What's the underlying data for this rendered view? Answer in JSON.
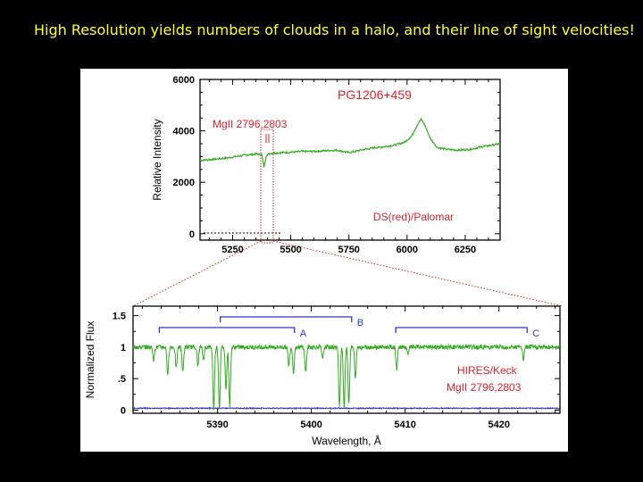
{
  "slide": {
    "title": "High Resolution yields numbers of clouds in a halo, and their line of sight velocities!"
  },
  "chart_data": [
    {
      "type": "line",
      "title": "PG1206+459",
      "ylabel": "Relative Intensity",
      "xlabel": "",
      "xlim": [
        5110,
        6400
      ],
      "ylim": [
        -250,
        6000
      ],
      "x_ticks": [
        5250,
        5500,
        5750,
        6000,
        6250
      ],
      "y_ticks": [
        0,
        2000,
        4000,
        6000
      ],
      "annotations": [
        "MgII 2796,2803",
        "DS(red)/Palomar"
      ],
      "series": [
        {
          "x": [
            5110,
            5150,
            5200,
            5250,
            5300,
            5350,
            5375,
            5385,
            5395,
            5410,
            5450,
            5500,
            5550,
            5600,
            5650,
            5700,
            5750,
            5800,
            5850,
            5900,
            5950,
            5990,
            6020,
            6045,
            6060,
            6075,
            6100,
            6130,
            6170,
            6220,
            6270,
            6320,
            6370,
            6400
          ],
          "y": [
            2850,
            2880,
            2920,
            2980,
            3050,
            3100,
            3080,
            2600,
            3050,
            3120,
            3150,
            3170,
            3200,
            3200,
            3230,
            3250,
            3150,
            3250,
            3330,
            3380,
            3450,
            3560,
            3800,
            4250,
            4450,
            4250,
            3700,
            3350,
            3280,
            3250,
            3280,
            3380,
            3450,
            3500
          ]
        }
      ]
    },
    {
      "type": "line",
      "title": "",
      "xlabel": "Wavelength, Å",
      "ylabel": "Normalized Flux",
      "xlim": [
        5381,
        5426.5
      ],
      "ylim": [
        -0.05,
        1.65
      ],
      "x_ticks": [
        5390,
        5400,
        5410,
        5420
      ],
      "y_ticks": [
        0,
        0.5,
        1,
        1.5
      ],
      "y_tick_labels": [
        "0",
        ".5",
        "1",
        "1.5"
      ],
      "annotations": [
        "HIRES/Keck",
        "MgII 2796,2803"
      ],
      "systems": [
        {
          "label": "A",
          "x_start": 5383.8,
          "x_end": 5398.2,
          "y": 1.31
        },
        {
          "label": "B",
          "x_start": 5390.3,
          "x_end": 5404.3,
          "y": 1.48
        },
        {
          "label": "C",
          "x_start": 5409.0,
          "x_end": 5423.0,
          "y": 1.31
        }
      ],
      "absorption_lines": [
        {
          "x": 5383.2,
          "depth": 0.2
        },
        {
          "x": 5384.7,
          "depth": 0.45
        },
        {
          "x": 5385.6,
          "depth": 0.35
        },
        {
          "x": 5386.3,
          "depth": 0.4
        },
        {
          "x": 5387.9,
          "depth": 0.3
        },
        {
          "x": 5388.5,
          "depth": 0.2
        },
        {
          "x": 5389.6,
          "depth": 0.98
        },
        {
          "x": 5390.2,
          "depth": 0.97
        },
        {
          "x": 5390.9,
          "depth": 0.65
        },
        {
          "x": 5391.3,
          "depth": 0.95
        },
        {
          "x": 5397.6,
          "depth": 0.3
        },
        {
          "x": 5398.1,
          "depth": 0.4
        },
        {
          "x": 5399.4,
          "depth": 0.4
        },
        {
          "x": 5401.2,
          "depth": 0.2
        },
        {
          "x": 5403.0,
          "depth": 0.96
        },
        {
          "x": 5403.5,
          "depth": 0.97
        },
        {
          "x": 5404.0,
          "depth": 0.9
        },
        {
          "x": 5404.7,
          "depth": 0.5
        },
        {
          "x": 5409.1,
          "depth": 0.35
        },
        {
          "x": 5410.3,
          "depth": 0.12
        },
        {
          "x": 5422.6,
          "depth": 0.2
        }
      ],
      "error_level": 0.03
    }
  ]
}
